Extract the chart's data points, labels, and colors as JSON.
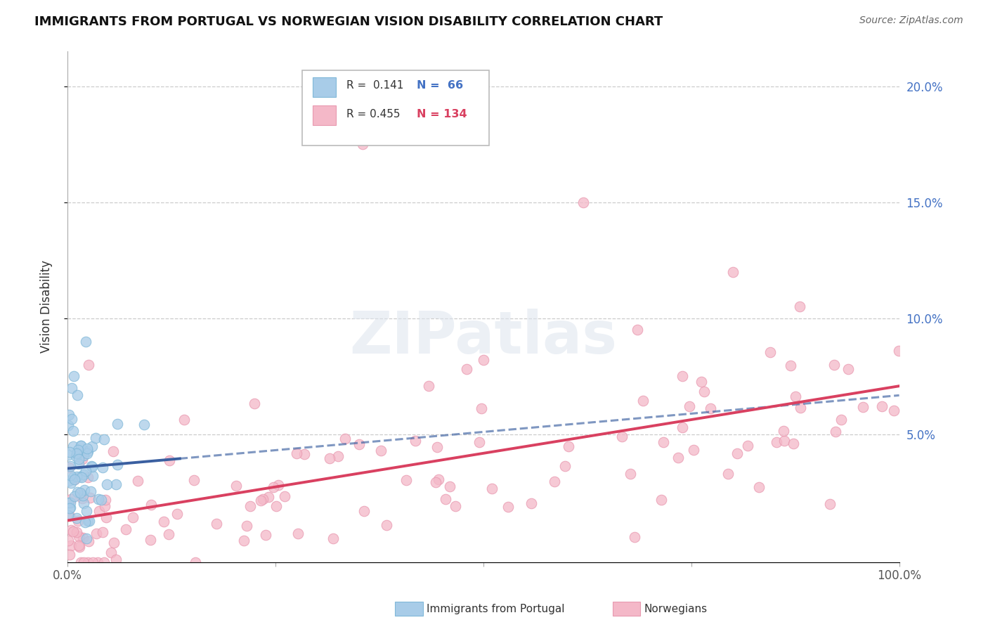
{
  "title": "IMMIGRANTS FROM PORTUGAL VS NORWEGIAN VISION DISABILITY CORRELATION CHART",
  "source": "Source: ZipAtlas.com",
  "ylabel": "Vision Disability",
  "color_blue": "#a8cce8",
  "color_pink": "#f4b8c8",
  "color_blue_line": "#3a5fa0",
  "color_pink_line": "#d94060",
  "color_blue_text": "#4472c4",
  "color_pink_text": "#d94060",
  "watermark": "ZIPatlas",
  "xlim": [
    0.0,
    1.0
  ],
  "ylim": [
    -0.005,
    0.215
  ],
  "R1": "0.141",
  "N1": "66",
  "R2": "0.455",
  "N2": "134"
}
